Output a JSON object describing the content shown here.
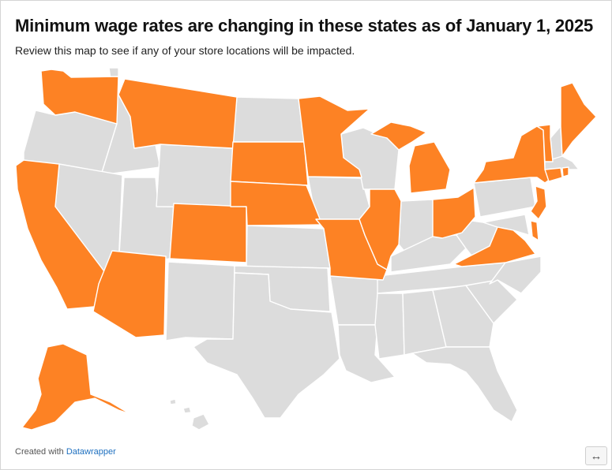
{
  "title": "Minimum wage rates are changing in these states as of January 1, 2025",
  "subtitle": "Review this map to see if any of your store locations will be impacted.",
  "credit": {
    "prefix": "Created with ",
    "link": "Datawrapper"
  },
  "resize_icon": "↔",
  "colors": {
    "changing": "#fd8224",
    "not_changing": "#dcdcdc",
    "border": "#ffffff"
  },
  "map": {
    "region": "United States",
    "changing_states": [
      "WA",
      "CA",
      "AZ",
      "MT",
      "CO",
      "SD",
      "NE",
      "MN",
      "MO",
      "IL",
      "MI",
      "OH",
      "VA",
      "NY",
      "VT",
      "ME",
      "RI",
      "CT",
      "NJ",
      "DE",
      "AK"
    ]
  }
}
